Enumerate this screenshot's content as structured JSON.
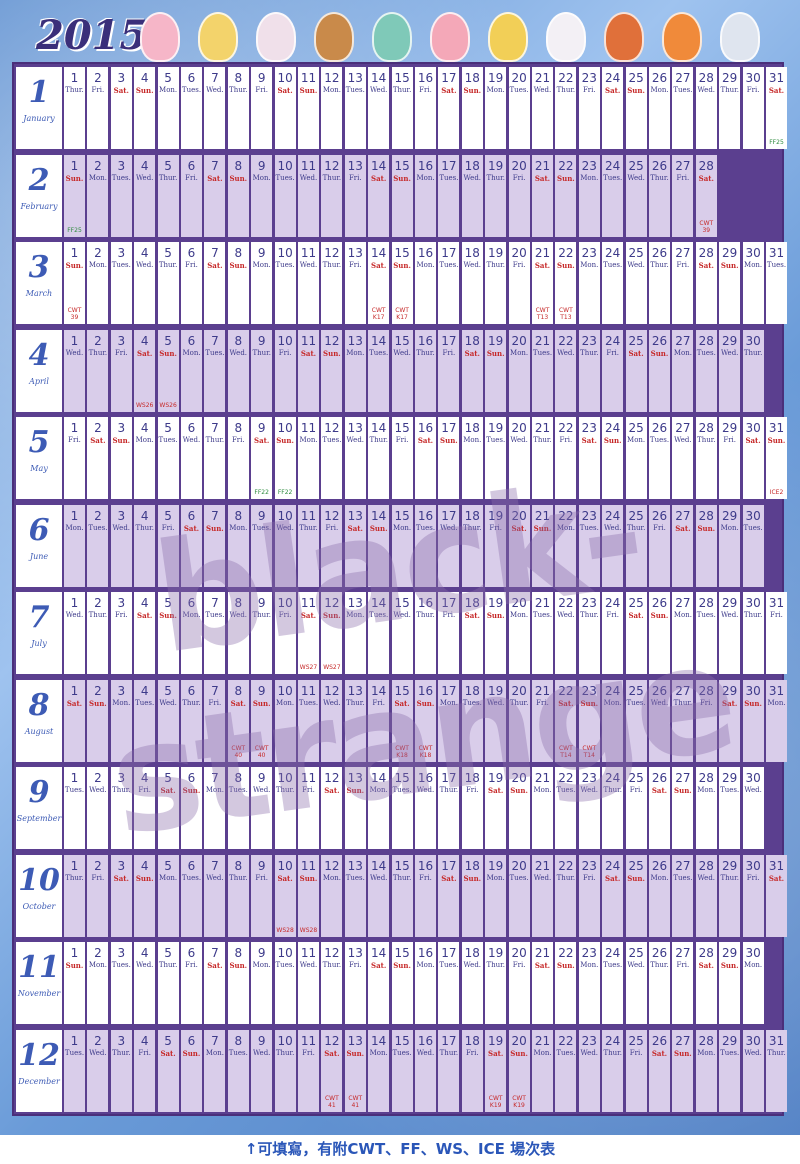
{
  "title": {
    "year": "2015"
  },
  "colors": {
    "frame": "#5b3f8f",
    "weekend": "#c62828",
    "text": "#3d3a8a",
    "shade": "#d9cdea",
    "month_num": "#3d5bb5"
  },
  "watermark": "black-strange",
  "caption": "↑可填寫，有附CWT、FF、WS、ICE 場次表",
  "characters": [
    "pig-chibi-icon",
    "blonde-boy-chibi-icon",
    "girl-chibi-icon",
    "brown-hair-chibi-icon",
    "green-hair-chibi-icon",
    "pig-chibi-icon",
    "blonde-boy-chibi-icon",
    "white-hair-girl-chibi-icon",
    "red-hair-girl-chibi-icon",
    "orange-hair-boy-chibi-icon",
    "silver-hair-boy-chibi-icon"
  ],
  "months": [
    {
      "num": "1",
      "name": "January",
      "days": 31,
      "start": 4,
      "events": {
        "31": {
          "t": "FF25",
          "c": "green"
        }
      }
    },
    {
      "num": "2",
      "name": "February",
      "days": 28,
      "start": 0,
      "events": {
        "1": {
          "t": "FF25",
          "c": "green"
        },
        "28": {
          "t": "CWT 39",
          "c": "red"
        }
      }
    },
    {
      "num": "3",
      "name": "March",
      "days": 31,
      "start": 0,
      "events": {
        "1": {
          "t": "CWT 39",
          "c": "red"
        },
        "14": {
          "t": "CWT K17",
          "c": "red"
        },
        "15": {
          "t": "CWT K17",
          "c": "red"
        },
        "21": {
          "t": "CWT T13",
          "c": "red"
        },
        "22": {
          "t": "CWT T13",
          "c": "red"
        }
      }
    },
    {
      "num": "4",
      "name": "April",
      "days": 30,
      "start": 3,
      "events": {
        "4": {
          "t": "WS26",
          "c": "red"
        },
        "5": {
          "t": "WS26",
          "c": "red"
        }
      }
    },
    {
      "num": "5",
      "name": "May",
      "days": 31,
      "start": 5,
      "events": {
        "9": {
          "t": "FF22",
          "c": "green"
        },
        "10": {
          "t": "FF22",
          "c": "green"
        },
        "31": {
          "t": "ICE2",
          "c": "red"
        }
      }
    },
    {
      "num": "6",
      "name": "June",
      "days": 30,
      "start": 1,
      "events": {}
    },
    {
      "num": "7",
      "name": "July",
      "days": 31,
      "start": 3,
      "events": {
        "11": {
          "t": "WS27",
          "c": "red"
        },
        "12": {
          "t": "WS27",
          "c": "red"
        }
      }
    },
    {
      "num": "8",
      "name": "August",
      "days": 31,
      "start": 6,
      "events": {
        "8": {
          "t": "CWT 40",
          "c": "red"
        },
        "9": {
          "t": "CWT 40",
          "c": "red"
        },
        "15": {
          "t": "CWT K18",
          "c": "red"
        },
        "16": {
          "t": "CWT K18",
          "c": "red"
        },
        "22": {
          "t": "CWT T14",
          "c": "red"
        },
        "23": {
          "t": "CWT T14",
          "c": "red"
        }
      }
    },
    {
      "num": "9",
      "name": "September",
      "days": 30,
      "start": 2,
      "events": {}
    },
    {
      "num": "10",
      "name": "October",
      "days": 31,
      "start": 4,
      "events": {
        "10": {
          "t": "WS28",
          "c": "red"
        },
        "11": {
          "t": "WS28",
          "c": "red"
        }
      }
    },
    {
      "num": "11",
      "name": "November",
      "days": 30,
      "start": 0,
      "events": {}
    },
    {
      "num": "12",
      "name": "December",
      "days": 31,
      "start": 2,
      "events": {
        "12": {
          "t": "CWT 41",
          "c": "red"
        },
        "13": {
          "t": "CWT 41",
          "c": "red"
        },
        "19": {
          "t": "CWT K19",
          "c": "red"
        },
        "20": {
          "t": "CWT K19",
          "c": "red"
        }
      }
    }
  ],
  "weekdays": [
    "Sun.",
    "Mon.",
    "Tues.",
    "Wed.",
    "Thur.",
    "Fri.",
    "Sat."
  ]
}
